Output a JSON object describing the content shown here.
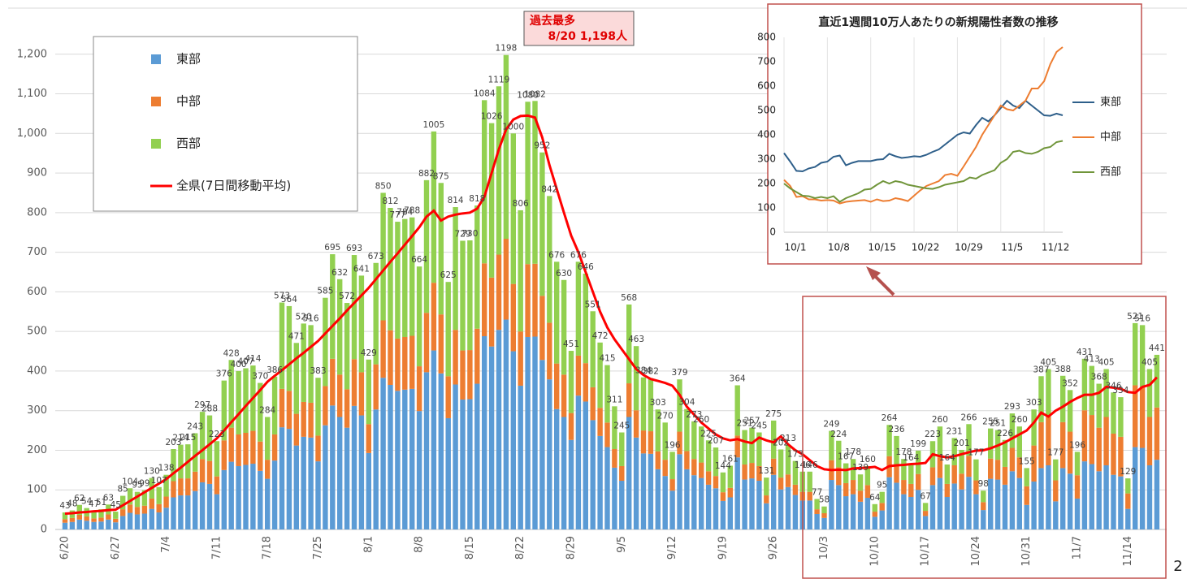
{
  "chart_data": [
    {
      "type": "bar",
      "stacked": true,
      "grid": true,
      "annotation": [
        "過去最多",
        "8/20 1,198人"
      ],
      "categories": [
        "6/20",
        null,
        null,
        null,
        null,
        null,
        null,
        "6/27",
        null,
        null,
        null,
        null,
        null,
        null,
        "7/4",
        null,
        null,
        null,
        null,
        null,
        null,
        "7/11",
        null,
        null,
        null,
        null,
        null,
        null,
        "7/18",
        null,
        null,
        null,
        null,
        null,
        null,
        "7/25",
        null,
        null,
        null,
        null,
        null,
        null,
        "8/1",
        null,
        null,
        null,
        null,
        null,
        null,
        "8/8",
        null,
        null,
        null,
        null,
        null,
        null,
        "8/15",
        null,
        null,
        null,
        null,
        null,
        null,
        "8/22",
        null,
        null,
        null,
        null,
        null,
        null,
        "8/29",
        null,
        null,
        null,
        null,
        null,
        null,
        "9/5",
        null,
        null,
        null,
        null,
        null,
        null,
        "9/12",
        null,
        null,
        null,
        null,
        null,
        null,
        "9/19",
        null,
        null,
        null,
        null,
        null,
        null,
        "9/26",
        null,
        null,
        null,
        null,
        null,
        null,
        "10/3",
        null,
        null,
        null,
        null,
        null,
        null,
        "10/10",
        null,
        null,
        null,
        null,
        null,
        null,
        "10/17",
        null,
        null,
        null,
        null,
        null,
        null,
        "10/24",
        null,
        null,
        null,
        null,
        null,
        null,
        "10/31",
        null,
        null,
        null,
        null,
        null,
        null,
        "11/7",
        null,
        null,
        null,
        null,
        null,
        null,
        "11/14",
        null,
        null,
        null,
        null
      ],
      "ylim": [
        0,
        1300
      ],
      "yticks": [
        0,
        100,
        200,
        300,
        400,
        500,
        600,
        700,
        800,
        900,
        {
          "value": 1000,
          "label": "1,000"
        },
        {
          "value": 1100,
          "label": "1,100"
        },
        {
          "value": 1200,
          "label": "1,200"
        }
      ],
      "series": [
        {
          "name": "東部",
          "color": "#5b9bd5",
          "values": [
            17,
            19,
            25,
            22,
            19,
            20,
            25,
            18,
            34,
            42,
            38,
            40,
            52,
            43,
            55,
            81,
            86,
            86,
            97,
            119,
            115,
            89,
            150,
            171,
            160,
            163,
            166,
            148,
            128,
            174,
            258,
            254,
            212,
            234,
            232,
            172,
            263,
            313,
            284,
            257,
            312,
            288,
            193,
            303,
            383,
            365,
            350,
            353,
            355,
            299,
            397,
            452,
            394,
            281,
            366,
            328,
            329,
            368,
            488,
            462,
            504,
            530,
            450,
            363,
            486,
            487,
            428,
            379,
            304,
            284,
            226,
            338,
            323,
            276,
            236,
            208,
            156,
            123,
            284,
            232,
            192,
            191,
            152,
            135,
            98,
            190,
            152,
            137,
            130,
            113,
            104,
            72,
            81,
            182,
            126,
            129,
            123,
            66,
            138,
            101,
            107,
            87,
            73,
            73,
            39,
            29,
            125,
            112,
            84,
            89,
            70,
            80,
            32,
            48,
            132,
            118,
            89,
            82,
            100,
            34,
            112,
            130,
            82,
            116,
            101,
            133,
            89,
            49,
            128,
            126,
            113,
            147,
            130,
            62,
            121,
            155,
            162,
            71,
            155,
            141,
            78,
            172,
            165,
            147,
            162,
            138,
            134,
            52,
            208,
            206,
            162,
            176
          ]
        },
        {
          "name": "中部",
          "color": "#ed7d31",
          "values": [
            9,
            10,
            12,
            11,
            9,
            10,
            13,
            9,
            17,
            21,
            19,
            20,
            26,
            21,
            28,
            41,
            43,
            43,
            49,
            59,
            58,
            45,
            75,
            86,
            80,
            81,
            83,
            74,
            48,
            66,
            97,
            96,
            80,
            88,
            88,
            65,
            99,
            118,
            107,
            97,
            118,
            109,
            73,
            114,
            145,
            138,
            132,
            133,
            134,
            113,
            150,
            171,
            149,
            106,
            138,
            124,
            124,
            139,
            184,
            174,
            190,
            204,
            170,
            137,
            184,
            184,
            162,
            143,
            115,
            107,
            68,
            101,
            97,
            83,
            71,
            62,
            47,
            37,
            85,
            69,
            58,
            57,
            45,
            41,
            29,
            57,
            46,
            41,
            39,
            34,
            31,
            22,
            24,
            55,
            38,
            39,
            37,
            20,
            41,
            30,
            32,
            26,
            22,
            22,
            12,
            12,
            50,
            45,
            33,
            36,
            28,
            32,
            13,
            19,
            53,
            47,
            36,
            33,
            40,
            13,
            45,
            52,
            33,
            46,
            40,
            53,
            35,
            20,
            51,
            50,
            45,
            59,
            52,
            47,
            91,
            116,
            122,
            53,
            116,
            106,
            59,
            129,
            124,
            110,
            122,
            104,
            100,
            39,
            156,
            155,
            122,
            132
          ]
        },
        {
          "name": "西部",
          "color": "#92d050",
          "values": [
            17,
            19,
            25,
            21,
            19,
            21,
            25,
            18,
            34,
            41,
            38,
            39,
            52,
            43,
            55,
            81,
            85,
            86,
            97,
            119,
            115,
            89,
            151,
            171,
            160,
            163,
            165,
            148,
            108,
            146,
            218,
            214,
            179,
            198,
            196,
            146,
            223,
            264,
            241,
            218,
            263,
            244,
            163,
            256,
            322,
            309,
            295,
            298,
            299,
            252,
            335,
            382,
            332,
            238,
            310,
            277,
            277,
            311,
            412,
            390,
            425,
            464,
            380,
            306,
            410,
            411,
            362,
            320,
            257,
            239,
            157,
            237,
            226,
            192,
            165,
            145,
            108,
            85,
            199,
            162,
            134,
            134,
            106,
            94,
            69,
            132,
            106,
            95,
            91,
            78,
            72,
            50,
            56,
            127,
            87,
            89,
            85,
            45,
            96,
            71,
            74,
            60,
            51,
            51,
            26,
            17,
            74,
            67,
            50,
            53,
            41,
            48,
            19,
            28,
            79,
            71,
            53,
            49,
            59,
            20,
            66,
            78,
            49,
            69,
            60,
            80,
            53,
            29,
            76,
            75,
            68,
            87,
            78,
            46,
            91,
            116,
            121,
            53,
            117,
            105,
            59,
            130,
            124,
            111,
            121,
            104,
            100,
            38,
            157,
            155,
            121,
            133
          ]
        },
        {
          "name": "全県(7日間移動平均)",
          "color": "#ff0000",
          "type": "line",
          "values": [
            40,
            41,
            43,
            44,
            46,
            47,
            49,
            50,
            61,
            72,
            83,
            94,
            105,
            116,
            127,
            142,
            156,
            171,
            186,
            200,
            215,
            230,
            250,
            271,
            291,
            312,
            332,
            352,
            373,
            388,
            402,
            417,
            432,
            446,
            461,
            476,
            495,
            514,
            533,
            553,
            572,
            591,
            610,
            632,
            654,
            676,
            697,
            719,
            741,
            763,
            790,
            805,
            780,
            790,
            795,
            798,
            800,
            810,
            840,
            900,
            960,
            1010,
            1035,
            1044,
            1045,
            1040,
            990,
            920,
            860,
            800,
            742,
            700,
            650,
            600,
            550,
            510,
            480,
            455,
            430,
            405,
            390,
            380,
            375,
            370,
            363,
            340,
            310,
            290,
            270,
            255,
            240,
            230,
            225,
            228,
            222,
            218,
            232,
            225,
            220,
            235,
            215,
            200,
            190,
            175,
            160,
            152,
            150,
            151,
            150,
            154,
            155,
            156,
            158,
            150,
            160,
            162,
            163,
            165,
            166,
            168,
            190,
            185,
            182,
            185,
            190,
            195,
            199,
            200,
            205,
            212,
            220,
            230,
            240,
            250,
            270,
            295,
            285,
            300,
            310,
            322,
            332,
            340,
            340,
            345,
            360,
            358,
            355,
            347,
            345,
            360,
            365,
            384
          ]
        }
      ],
      "total_labels": [
        43,
        48,
        62,
        54,
        47,
        51,
        63,
        45,
        85,
        104,
        95,
        99,
        130,
        107,
        138,
        203,
        214,
        215,
        243,
        297,
        288,
        223,
        376,
        428,
        400,
        407,
        414,
        370,
        284,
        386,
        573,
        564,
        471,
        520,
        516,
        383,
        585,
        695,
        632,
        572,
        693,
        641,
        429,
        673,
        850,
        812,
        777,
        784,
        788,
        664,
        882,
        1005,
        875,
        625,
        814,
        729,
        730,
        818,
        1084,
        1026,
        1119,
        1198,
        1000,
        806,
        1080,
        1082,
        952,
        842,
        676,
        630,
        451,
        676,
        646,
        551,
        472,
        415,
        311,
        245,
        568,
        463,
        384,
        382,
        303,
        270,
        196,
        379,
        304,
        273,
        260,
        225,
        207,
        144,
        161,
        364,
        251,
        257,
        245,
        131,
        275,
        202,
        213,
        173,
        146,
        146,
        77,
        58,
        249,
        224,
        167,
        178,
        139,
        160,
        64,
        95,
        264,
        236,
        178,
        164,
        199,
        67,
        223,
        260,
        164,
        231,
        201,
        266,
        177,
        98,
        255,
        251,
        226,
        293,
        260,
        155,
        303,
        387,
        405,
        177,
        388,
        352,
        196,
        431,
        413,
        368,
        405,
        346,
        334,
        129,
        521,
        516,
        405,
        441
      ]
    },
    {
      "type": "line",
      "title": "直近1週間10万人あたりの新規陽性者数の推移",
      "categories": [
        "10/1",
        null,
        null,
        null,
        null,
        null,
        null,
        "10/8",
        null,
        null,
        null,
        null,
        null,
        null,
        "10/15",
        null,
        null,
        null,
        null,
        null,
        null,
        "10/22",
        null,
        null,
        null,
        null,
        null,
        null,
        "10/29",
        null,
        null,
        null,
        null,
        null,
        null,
        "11/5",
        null,
        null,
        null,
        null,
        null,
        null,
        "11/12",
        null,
        null,
        null
      ],
      "ylim": [
        0,
        800
      ],
      "yticks": [
        0,
        100,
        200,
        300,
        400,
        500,
        600,
        700,
        800
      ],
      "series": [
        {
          "name": "東部",
          "color": "#2e5f8a",
          "values": [
            325,
            290,
            252,
            250,
            262,
            268,
            285,
            290,
            310,
            315,
            275,
            285,
            292,
            292,
            292,
            298,
            300,
            322,
            312,
            305,
            308,
            312,
            310,
            318,
            330,
            340,
            360,
            380,
            400,
            410,
            405,
            440,
            470,
            455,
            480,
            510,
            540,
            520,
            510,
            540,
            520,
            500,
            480,
            478,
            487,
            480
          ]
        },
        {
          "name": "中部",
          "color": "#ed7d31",
          "values": [
            215,
            190,
            145,
            148,
            135,
            135,
            130,
            132,
            130,
            118,
            125,
            128,
            130,
            132,
            125,
            135,
            128,
            130,
            140,
            135,
            128,
            150,
            172,
            190,
            200,
            210,
            235,
            240,
            232,
            270,
            310,
            350,
            400,
            440,
            480,
            520,
            505,
            500,
            520,
            540,
            590,
            590,
            620,
            690,
            740,
            760
          ]
        },
        {
          "name": "西部",
          "color": "#70953a",
          "values": [
            200,
            180,
            165,
            150,
            148,
            140,
            145,
            140,
            148,
            125,
            140,
            150,
            160,
            175,
            178,
            195,
            210,
            200,
            210,
            205,
            195,
            190,
            185,
            180,
            178,
            185,
            195,
            200,
            205,
            210,
            225,
            220,
            235,
            245,
            255,
            285,
            300,
            330,
            335,
            325,
            322,
            330,
            345,
            350,
            370,
            375
          ]
        }
      ]
    }
  ],
  "page_number": 2
}
